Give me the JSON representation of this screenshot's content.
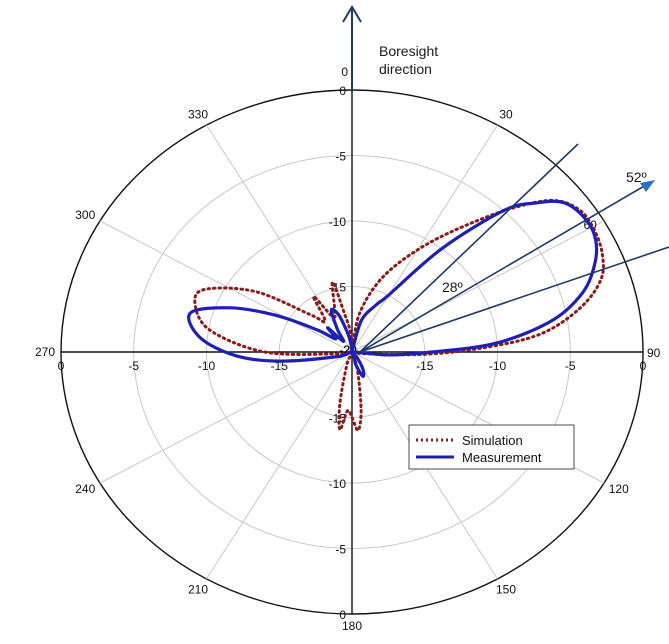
{
  "chart_data": {
    "type": "polar-line",
    "angle_labels": [
      {
        "deg": 0,
        "text": "0"
      },
      {
        "deg": 30,
        "text": "30"
      },
      {
        "deg": 60,
        "text": "60"
      },
      {
        "deg": 90,
        "text": "90"
      },
      {
        "deg": 120,
        "text": "120"
      },
      {
        "deg": 150,
        "text": "150"
      },
      {
        "deg": 180,
        "text": "180"
      },
      {
        "deg": 210,
        "text": "210"
      },
      {
        "deg": 240,
        "text": "240"
      },
      {
        "deg": 270,
        "text": "270"
      },
      {
        "deg": 300,
        "text": "300"
      },
      {
        "deg": 330,
        "text": "330"
      }
    ],
    "radial_range": [
      -20,
      0
    ],
    "radial_ticks": [
      0,
      -5,
      -10,
      -15,
      -20
    ],
    "radial_tick_labels": [
      "0",
      "-5",
      "-10",
      "-15",
      "-20"
    ],
    "grid": true,
    "legend_position": "bottom-right",
    "series": [
      {
        "name": "Simulation",
        "color": "#8b1a1a",
        "style": "dotted",
        "points": [
          [
            0,
            -20
          ],
          [
            10,
            -17
          ],
          [
            20,
            -14
          ],
          [
            30,
            -11
          ],
          [
            38,
            -8
          ],
          [
            45,
            -4.5
          ],
          [
            50,
            -2
          ],
          [
            55,
            -1
          ],
          [
            60,
            -0.9
          ],
          [
            66,
            -1.2
          ],
          [
            72,
            -2
          ],
          [
            78,
            -4
          ],
          [
            84,
            -7
          ],
          [
            88,
            -11
          ],
          [
            92,
            -15
          ],
          [
            98,
            -19
          ],
          [
            110,
            -20
          ],
          [
            140,
            -20
          ],
          [
            165,
            -18.5
          ],
          [
            172,
            -15.5
          ],
          [
            176,
            -14
          ],
          [
            180,
            -15
          ],
          [
            184,
            -15.5
          ],
          [
            188,
            -14
          ],
          [
            192,
            -16
          ],
          [
            200,
            -19
          ],
          [
            230,
            -20
          ],
          [
            262,
            -19
          ],
          [
            270,
            -14
          ],
          [
            280,
            -10
          ],
          [
            290,
            -8.5
          ],
          [
            296,
            -9
          ],
          [
            305,
            -12
          ],
          [
            315,
            -16
          ],
          [
            322,
            -17
          ],
          [
            328,
            -15
          ],
          [
            334,
            -17
          ],
          [
            340,
            -16.5
          ],
          [
            346,
            -14.5
          ],
          [
            350,
            -17
          ],
          [
            356,
            -18.5
          ],
          [
            360,
            -20
          ]
        ]
      },
      {
        "name": "Measurement",
        "color": "#1f1fb4",
        "style": "solid",
        "points": [
          [
            0,
            -20
          ],
          [
            15,
            -17.5
          ],
          [
            25,
            -16
          ],
          [
            30,
            -15
          ],
          [
            38,
            -10
          ],
          [
            44,
            -5
          ],
          [
            48,
            -3
          ],
          [
            52,
            -1.5
          ],
          [
            58,
            -1
          ],
          [
            63,
            -1.2
          ],
          [
            68,
            -2
          ],
          [
            74,
            -3.5
          ],
          [
            80,
            -6
          ],
          [
            86,
            -10
          ],
          [
            90,
            -14.5
          ],
          [
            95,
            -17.5
          ],
          [
            110,
            -20
          ],
          [
            140,
            -19.5
          ],
          [
            150,
            -18.5
          ],
          [
            158,
            -18
          ],
          [
            165,
            -19
          ],
          [
            200,
            -20
          ],
          [
            250,
            -19
          ],
          [
            262,
            -15
          ],
          [
            268,
            -12
          ],
          [
            276,
            -9.5
          ],
          [
            285,
            -8.5
          ],
          [
            292,
            -11
          ],
          [
            298,
            -14
          ],
          [
            305,
            -17
          ],
          [
            312,
            -18.5
          ],
          [
            318,
            -17.5
          ],
          [
            324,
            -19
          ],
          [
            330,
            -18
          ],
          [
            336,
            -16.5
          ],
          [
            342,
            -17
          ],
          [
            348,
            -18.5
          ],
          [
            354,
            -19.5
          ],
          [
            360,
            -20
          ]
        ]
      }
    ],
    "annotations": {
      "boresight_line1": "Boresight",
      "boresight_line2": "direction",
      "angle_52": "52º",
      "angle_28": "28º"
    }
  },
  "legend": {
    "simulation": "Simulation",
    "measurement": "Measurement"
  }
}
